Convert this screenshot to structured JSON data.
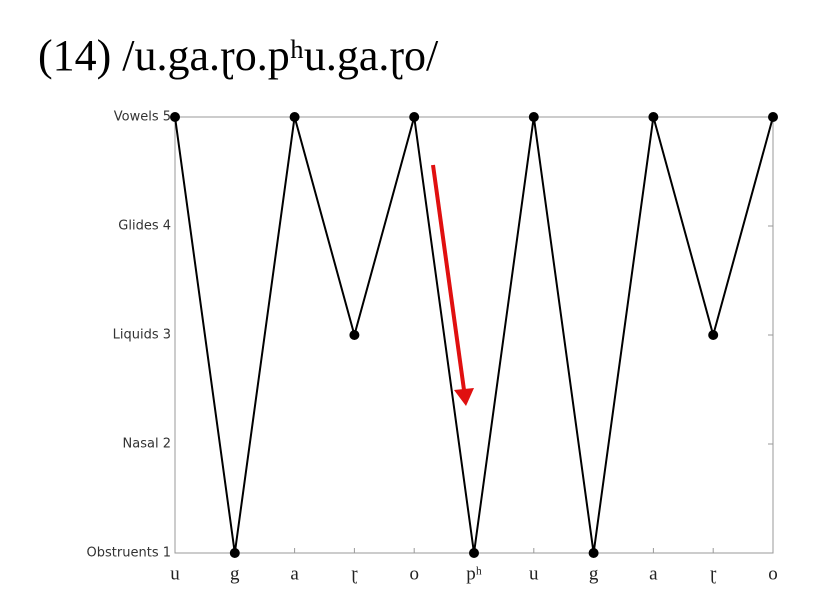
{
  "chart_data": {
    "type": "line",
    "title": "(14) /u.ga.ɽo.pʰu.ga.ɽo/",
    "categories": [
      "u",
      "g",
      "a",
      "ɽ",
      "o",
      "pʰ",
      "u",
      "g",
      "a",
      "ɽ",
      "o"
    ],
    "values": [
      5,
      1,
      5,
      3,
      5,
      1,
      5,
      1,
      5,
      3,
      5
    ],
    "color": "#000000",
    "ylim": [
      1,
      5
    ],
    "yticks": [
      {
        "value": 1,
        "label": "Obstruents 1"
      },
      {
        "value": 2,
        "label": "Nasal 2"
      },
      {
        "value": 3,
        "label": "Liquids 3"
      },
      {
        "value": 4,
        "label": "Glides 4"
      },
      {
        "value": 5,
        "label": "Vowels 5"
      }
    ],
    "grid": false
  }
}
